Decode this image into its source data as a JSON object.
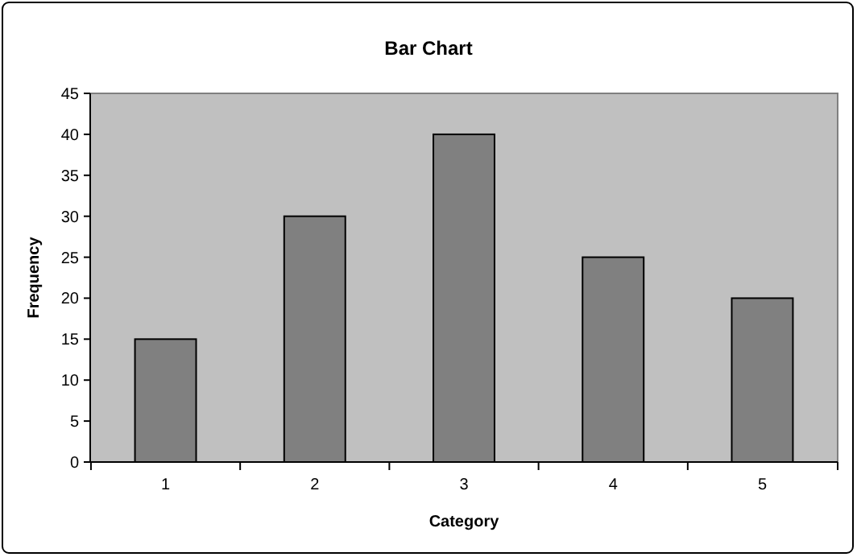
{
  "chart_data": {
    "type": "bar",
    "title": "Bar Chart",
    "xlabel": "Category",
    "ylabel": "Frequency",
    "categories": [
      "1",
      "2",
      "3",
      "4",
      "5"
    ],
    "values": [
      15,
      30,
      40,
      25,
      20
    ],
    "color": "#808080",
    "ylim": [
      0,
      45
    ],
    "yticks": [
      0,
      5,
      10,
      15,
      20,
      25,
      30,
      35,
      40,
      45
    ],
    "grid": false
  }
}
